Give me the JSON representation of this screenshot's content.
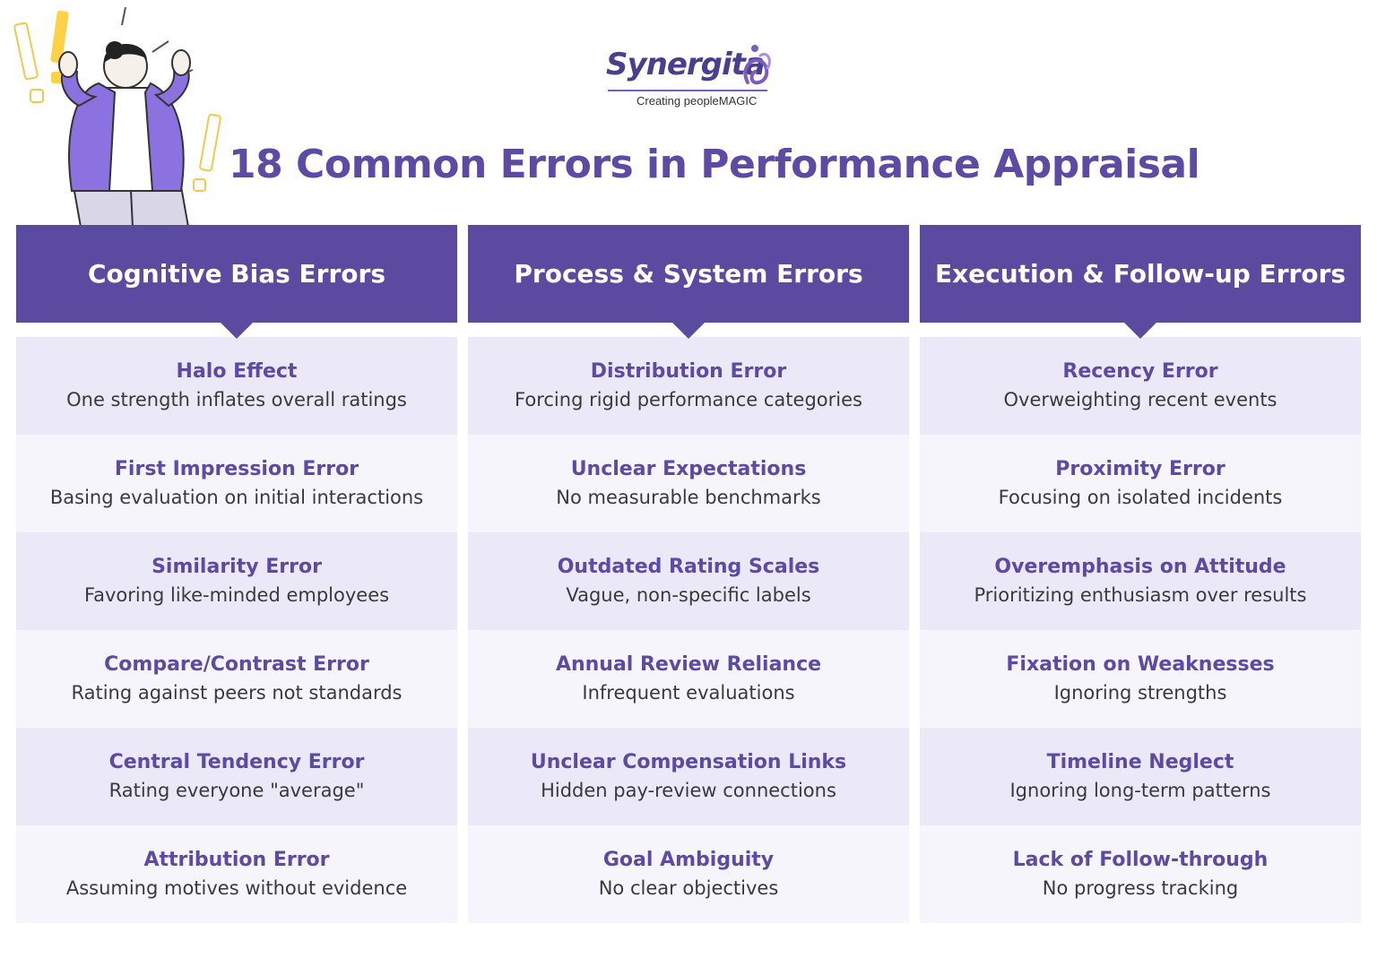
{
  "logo": {
    "name": "Synergita",
    "tagline": "Creating peopleMAGIC"
  },
  "title": "18 Common Errors in Performance Appraisal",
  "colors": {
    "brand": "#5b4ba0",
    "row_shade": "#ebe8f8",
    "row_light": "#f6f5fc",
    "accent_yellow": "#ffd147"
  },
  "columns": [
    {
      "title": "Cognitive Bias Errors",
      "items": [
        {
          "name": "Halo Effect",
          "desc": "One strength inflates overall ratings"
        },
        {
          "name": "First Impression Error",
          "desc": "Basing evaluation on initial interactions"
        },
        {
          "name": "Similarity Error",
          "desc": "Favoring like-minded employees"
        },
        {
          "name": "Compare/Contrast Error",
          "desc": "Rating against peers not standards"
        },
        {
          "name": "Central Tendency Error",
          "desc": "Rating everyone \"average\""
        },
        {
          "name": "Attribution Error",
          "desc": "Assuming motives without evidence"
        }
      ]
    },
    {
      "title": "Process & System Errors",
      "items": [
        {
          "name": "Distribution Error",
          "desc": "Forcing rigid performance categories"
        },
        {
          "name": "Unclear Expectations",
          "desc": "No measurable benchmarks"
        },
        {
          "name": "Outdated Rating Scales",
          "desc": "Vague, non-specific labels"
        },
        {
          "name": "Annual Review Reliance",
          "desc": "Infrequent evaluations"
        },
        {
          "name": "Unclear Compensation Links",
          "desc": "Hidden pay-review connections"
        },
        {
          "name": "Goal Ambiguity",
          "desc": "No clear objectives"
        }
      ]
    },
    {
      "title": "Execution & Follow-up Errors",
      "items": [
        {
          "name": "Recency Error",
          "desc": "Overweighting recent events"
        },
        {
          "name": "Proximity Error",
          "desc": "Focusing on isolated incidents"
        },
        {
          "name": "Overemphasis on Attitude",
          "desc": "Prioritizing enthusiasm over results"
        },
        {
          "name": "Fixation on Weaknesses",
          "desc": "Ignoring strengths"
        },
        {
          "name": "Timeline Neglect",
          "desc": "Ignoring long-term patterns"
        },
        {
          "name": "Lack of Follow-through",
          "desc": "No progress tracking"
        }
      ]
    }
  ]
}
